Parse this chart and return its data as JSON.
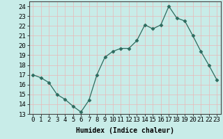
{
  "x": [
    0,
    1,
    2,
    3,
    4,
    5,
    6,
    7,
    8,
    9,
    10,
    11,
    12,
    13,
    14,
    15,
    16,
    17,
    18,
    19,
    20,
    21,
    22,
    23
  ],
  "y": [
    17.0,
    16.7,
    16.2,
    15.0,
    14.5,
    13.8,
    13.2,
    14.4,
    17.0,
    18.8,
    19.4,
    19.7,
    19.7,
    20.5,
    22.1,
    21.7,
    22.1,
    24.0,
    22.8,
    22.5,
    21.0,
    19.4,
    18.0,
    16.5
  ],
  "title": "",
  "xlabel": "Humidex (Indice chaleur)",
  "ylabel": "",
  "xlim": [
    -0.5,
    23.5
  ],
  "ylim": [
    13,
    24.5
  ],
  "yticks": [
    13,
    14,
    15,
    16,
    17,
    18,
    19,
    20,
    21,
    22,
    23,
    24
  ],
  "xticks": [
    0,
    1,
    2,
    3,
    4,
    5,
    6,
    7,
    8,
    9,
    10,
    11,
    12,
    13,
    14,
    15,
    16,
    17,
    18,
    19,
    20,
    21,
    22,
    23
  ],
  "line_color": "#2d6b5e",
  "marker": "D",
  "marker_size": 2.5,
  "bg_color": "#c8ece8",
  "grid_color": "#e8b8b8",
  "title_fontsize": 7,
  "label_fontsize": 7,
  "tick_fontsize": 6.5
}
